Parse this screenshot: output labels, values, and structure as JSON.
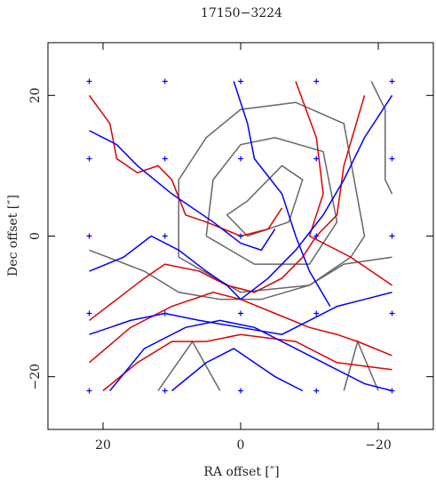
{
  "chart_data": {
    "type": "line",
    "title": "17150−3224",
    "xlabel": "RA offset  [″]",
    "ylabel": "Dec offset  [″]",
    "xlim": [
      28,
      -28
    ],
    "ylim": [
      -27.5,
      27.5
    ],
    "xticks": [
      20,
      0,
      {
        "value": -20,
        "label": "−20"
      }
    ],
    "yticks": [
      {
        "value": -20,
        "label": "−20"
      },
      0,
      20
    ],
    "points": {
      "color": "#0000ff",
      "x": [
        22,
        11,
        0,
        -11,
        -22,
        22,
        11,
        0,
        -11,
        -22,
        22,
        11,
        0,
        -11,
        -22,
        22,
        11,
        0,
        -11,
        -22,
        22,
        11,
        0,
        -11,
        -22
      ],
      "y": [
        22,
        22,
        22,
        22,
        22,
        11,
        11,
        11,
        11,
        11,
        0,
        0,
        0,
        0,
        0,
        -11,
        -11,
        -11,
        -11,
        -11,
        -22,
        -22,
        -22,
        -22,
        -22
      ]
    },
    "series": [
      {
        "color": "#666666",
        "x": [
          9,
          9,
          5,
          0,
          -8,
          -15,
          -18,
          -16,
          -10,
          0,
          9
        ],
        "y": [
          -3,
          8,
          14,
          18,
          19,
          16,
          0,
          -3,
          -7,
          -8,
          -3
        ]
      },
      {
        "color": "#666666",
        "x": [
          5,
          4,
          0,
          -5,
          -12,
          -14,
          -10,
          -2,
          5
        ],
        "y": [
          0,
          8,
          13,
          14,
          12,
          2,
          -4,
          -4,
          0
        ]
      },
      {
        "color": "#666666",
        "x": [
          2,
          -1,
          -6,
          -9,
          -7,
          -1,
          2
        ],
        "y": [
          3,
          5,
          10,
          8,
          2,
          0,
          3
        ]
      },
      {
        "color": "#666666",
        "x": [
          12,
          7,
          3
        ],
        "y": [
          -22,
          -15,
          -22
        ]
      },
      {
        "color": "#666666",
        "x": [
          -15,
          -17,
          -20
        ],
        "y": [
          -22,
          -15,
          -22
        ]
      },
      {
        "color": "#666666",
        "x": [
          -19,
          -21,
          -21,
          -22
        ],
        "y": [
          22,
          18,
          8,
          6
        ]
      },
      {
        "color": "#666666",
        "x": [
          22,
          14,
          9,
          3,
          -3,
          -10,
          -15,
          -22
        ],
        "y": [
          -2,
          -5,
          -8,
          -9,
          -9,
          -7,
          -4,
          -3
        ]
      },
      {
        "color": "#dd0000",
        "x": [
          22,
          19,
          18,
          15,
          12,
          10,
          8,
          5,
          0,
          -4,
          -6
        ],
        "y": [
          20,
          16,
          11,
          9,
          10,
          8,
          3,
          2,
          0,
          1,
          4
        ]
      },
      {
        "color": "#dd0000",
        "x": [
          -18,
          -15,
          -14,
          -11,
          -9,
          -6,
          -2,
          2,
          6,
          11,
          14,
          18,
          22
        ],
        "y": [
          20,
          10,
          3,
          0,
          -3,
          -6,
          -8,
          -7,
          -5,
          -4,
          -6,
          -9,
          -12
        ]
      },
      {
        "color": "#dd0000",
        "x": [
          22,
          16,
          10,
          4,
          0,
          -5,
          -10,
          -14,
          -17,
          -22
        ],
        "y": [
          -18,
          -13,
          -10,
          -8,
          -9,
          -11,
          -13,
          -14,
          -15,
          -17
        ]
      },
      {
        "color": "#dd0000",
        "x": [
          20,
          15,
          10,
          5,
          0,
          -8,
          -14,
          -22
        ],
        "y": [
          -22,
          -18,
          -15,
          -15,
          -14,
          -15,
          -18,
          -19
        ]
      },
      {
        "color": "#dd0000",
        "x": [
          -8,
          -11,
          -12,
          -10,
          -16,
          -22
        ],
        "y": [
          22,
          14,
          6,
          0,
          -3,
          -7
        ]
      },
      {
        "color": "#0000ff",
        "x": [
          22,
          18,
          15,
          10,
          4,
          0,
          -3,
          -5
        ],
        "y": [
          15,
          13,
          10,
          6,
          2,
          -1,
          -2,
          1
        ]
      },
      {
        "color": "#0000ff",
        "x": [
          22,
          17,
          13,
          9,
          5,
          2,
          0,
          -4,
          -8,
          -12,
          -15,
          -18,
          -22
        ],
        "y": [
          -5,
          -3,
          0,
          -2,
          -5,
          -7,
          -9,
          -6,
          -2,
          3,
          8,
          14,
          20
        ]
      },
      {
        "color": "#0000ff",
        "x": [
          22,
          16,
          11,
          6,
          0,
          -6,
          -10,
          -14,
          -18,
          -22
        ],
        "y": [
          -14,
          -12,
          -11,
          -12,
          -13,
          -14,
          -12,
          -10,
          -9,
          -8
        ]
      },
      {
        "color": "#0000ff",
        "x": [
          19,
          14,
          8,
          3,
          -2,
          -8,
          -14,
          -18,
          -22
        ],
        "y": [
          -22,
          -16,
          -13,
          -12,
          -13,
          -16,
          -19,
          -21,
          -22
        ]
      },
      {
        "color": "#0000ff",
        "x": [
          1,
          -1,
          -2,
          -6,
          -8,
          -10,
          -13
        ],
        "y": [
          22,
          16,
          11,
          6,
          0,
          -5,
          -10
        ]
      },
      {
        "color": "#0000ff",
        "x": [
          10,
          5,
          1,
          -2,
          -5,
          -9
        ],
        "y": [
          -22,
          -18,
          -16,
          -18,
          -20,
          -22
        ]
      }
    ]
  }
}
